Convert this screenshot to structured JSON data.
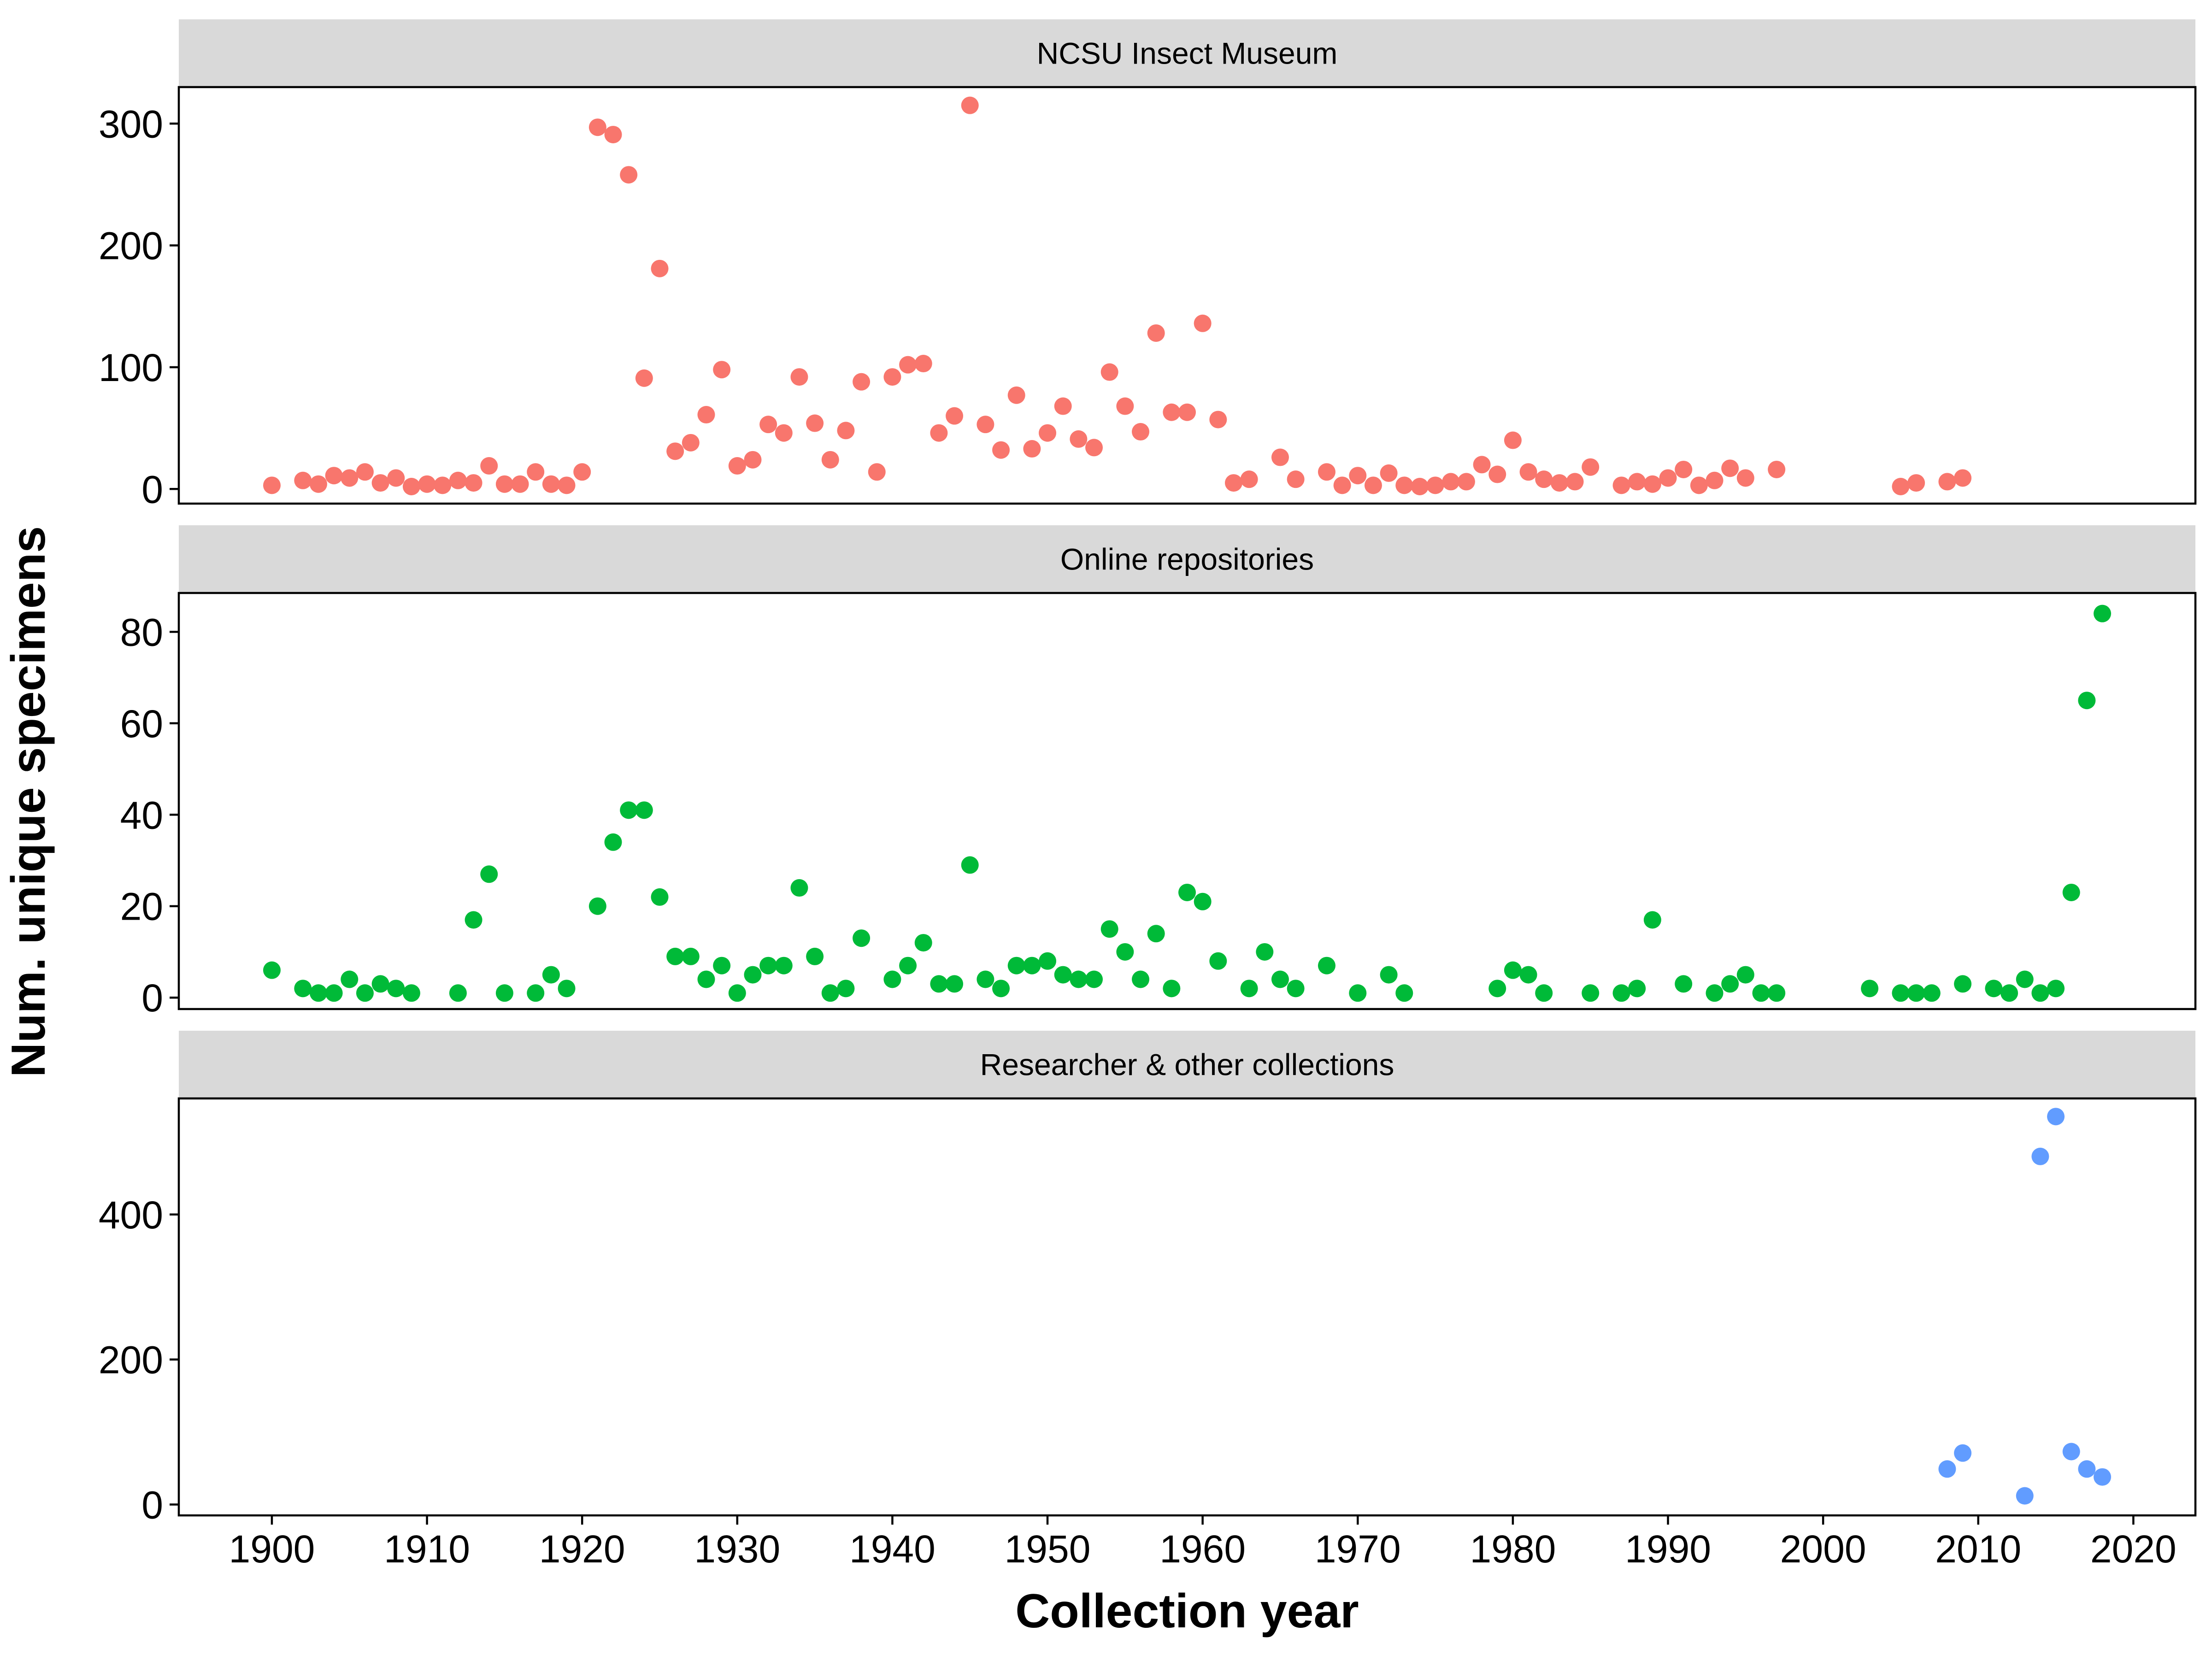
{
  "chart_data": {
    "type": "scatter",
    "xlabel": "Collection year",
    "ylabel": "Num. unique specimens",
    "xlim": [
      1894,
      2024
    ],
    "xticks": [
      1900,
      1910,
      1920,
      1930,
      1940,
      1950,
      1960,
      1970,
      1980,
      1990,
      2000,
      2010,
      2020
    ],
    "legend": "none",
    "grid": false,
    "panels": [
      {
        "strip": "NCSU Insect Museum",
        "color": "#F8766D",
        "ylim": [
          -12,
          330
        ],
        "yticks": [
          0,
          100,
          200,
          300
        ],
        "points": [
          [
            1900,
            3
          ],
          [
            1902,
            7
          ],
          [
            1903,
            4
          ],
          [
            1904,
            11
          ],
          [
            1905,
            9
          ],
          [
            1906,
            14
          ],
          [
            1907,
            5
          ],
          [
            1908,
            9
          ],
          [
            1909,
            2
          ],
          [
            1910,
            4
          ],
          [
            1911,
            3
          ],
          [
            1912,
            7
          ],
          [
            1913,
            5
          ],
          [
            1914,
            19
          ],
          [
            1915,
            4
          ],
          [
            1916,
            4
          ],
          [
            1917,
            14
          ],
          [
            1918,
            4
          ],
          [
            1919,
            3
          ],
          [
            1920,
            14
          ],
          [
            1921,
            297
          ],
          [
            1922,
            291
          ],
          [
            1923,
            258
          ],
          [
            1924,
            91
          ],
          [
            1925,
            181
          ],
          [
            1926,
            31
          ],
          [
            1927,
            38
          ],
          [
            1928,
            61
          ],
          [
            1929,
            98
          ],
          [
            1930,
            19
          ],
          [
            1931,
            24
          ],
          [
            1932,
            53
          ],
          [
            1933,
            46
          ],
          [
            1934,
            92
          ],
          [
            1935,
            54
          ],
          [
            1936,
            24
          ],
          [
            1937,
            48
          ],
          [
            1938,
            88
          ],
          [
            1939,
            14
          ],
          [
            1940,
            92
          ],
          [
            1941,
            102
          ],
          [
            1942,
            103
          ],
          [
            1943,
            46
          ],
          [
            1944,
            60
          ],
          [
            1945,
            315
          ],
          [
            1946,
            53
          ],
          [
            1947,
            32
          ],
          [
            1948,
            77
          ],
          [
            1949,
            33
          ],
          [
            1950,
            46
          ],
          [
            1951,
            68
          ],
          [
            1952,
            41
          ],
          [
            1953,
            34
          ],
          [
            1954,
            96
          ],
          [
            1955,
            68
          ],
          [
            1956,
            47
          ],
          [
            1957,
            128
          ],
          [
            1958,
            63
          ],
          [
            1959,
            63
          ],
          [
            1960,
            136
          ],
          [
            1961,
            57
          ],
          [
            1962,
            5
          ],
          [
            1963,
            8
          ],
          [
            1965,
            26
          ],
          [
            1966,
            8
          ],
          [
            1968,
            14
          ],
          [
            1969,
            3
          ],
          [
            1970,
            11
          ],
          [
            1971,
            3
          ],
          [
            1972,
            13
          ],
          [
            1973,
            3
          ],
          [
            1974,
            2
          ],
          [
            1975,
            3
          ],
          [
            1976,
            6
          ],
          [
            1977,
            6
          ],
          [
            1978,
            20
          ],
          [
            1979,
            12
          ],
          [
            1980,
            40
          ],
          [
            1981,
            14
          ],
          [
            1982,
            8
          ],
          [
            1983,
            5
          ],
          [
            1984,
            6
          ],
          [
            1985,
            18
          ],
          [
            1987,
            3
          ],
          [
            1988,
            6
          ],
          [
            1989,
            4
          ],
          [
            1990,
            9
          ],
          [
            1991,
            16
          ],
          [
            1992,
            3
          ],
          [
            1993,
            7
          ],
          [
            1994,
            17
          ],
          [
            1995,
            9
          ],
          [
            1997,
            16
          ],
          [
            2005,
            2
          ],
          [
            2006,
            5
          ],
          [
            2008,
            6
          ],
          [
            2009,
            9
          ]
        ]
      },
      {
        "strip": "Online repositories",
        "color": "#00BA38",
        "ylim": [
          -2.5,
          88.5
        ],
        "yticks": [
          0,
          20,
          40,
          60,
          80
        ],
        "points": [
          [
            1900,
            6
          ],
          [
            1902,
            2
          ],
          [
            1903,
            1
          ],
          [
            1904,
            1
          ],
          [
            1905,
            4
          ],
          [
            1906,
            1
          ],
          [
            1907,
            3
          ],
          [
            1908,
            2
          ],
          [
            1909,
            1
          ],
          [
            1912,
            1
          ],
          [
            1913,
            17
          ],
          [
            1914,
            27
          ],
          [
            1915,
            1
          ],
          [
            1917,
            1
          ],
          [
            1918,
            5
          ],
          [
            1919,
            2
          ],
          [
            1921,
            20
          ],
          [
            1922,
            34
          ],
          [
            1923,
            41
          ],
          [
            1924,
            41
          ],
          [
            1925,
            22
          ],
          [
            1926,
            9
          ],
          [
            1927,
            9
          ],
          [
            1928,
            4
          ],
          [
            1929,
            7
          ],
          [
            1930,
            1
          ],
          [
            1931,
            5
          ],
          [
            1932,
            7
          ],
          [
            1933,
            7
          ],
          [
            1934,
            24
          ],
          [
            1935,
            9
          ],
          [
            1936,
            1
          ],
          [
            1937,
            2
          ],
          [
            1938,
            13
          ],
          [
            1940,
            4
          ],
          [
            1941,
            7
          ],
          [
            1942,
            12
          ],
          [
            1943,
            3
          ],
          [
            1944,
            3
          ],
          [
            1945,
            29
          ],
          [
            1946,
            4
          ],
          [
            1947,
            2
          ],
          [
            1948,
            7
          ],
          [
            1949,
            7
          ],
          [
            1950,
            8
          ],
          [
            1951,
            5
          ],
          [
            1952,
            4
          ],
          [
            1953,
            4
          ],
          [
            1954,
            15
          ],
          [
            1955,
            10
          ],
          [
            1956,
            4
          ],
          [
            1957,
            14
          ],
          [
            1958,
            2
          ],
          [
            1959,
            23
          ],
          [
            1960,
            21
          ],
          [
            1961,
            8
          ],
          [
            1963,
            2
          ],
          [
            1964,
            10
          ],
          [
            1965,
            4
          ],
          [
            1966,
            2
          ],
          [
            1968,
            7
          ],
          [
            1970,
            1
          ],
          [
            1972,
            5
          ],
          [
            1973,
            1
          ],
          [
            1979,
            2
          ],
          [
            1980,
            6
          ],
          [
            1981,
            5
          ],
          [
            1982,
            1
          ],
          [
            1985,
            1
          ],
          [
            1987,
            1
          ],
          [
            1988,
            2
          ],
          [
            1989,
            17
          ],
          [
            1991,
            3
          ],
          [
            1993,
            1
          ],
          [
            1994,
            3
          ],
          [
            1995,
            5
          ],
          [
            1996,
            1
          ],
          [
            1997,
            1
          ],
          [
            2003,
            2
          ],
          [
            2005,
            1
          ],
          [
            2006,
            1
          ],
          [
            2007,
            1
          ],
          [
            2009,
            3
          ],
          [
            2011,
            2
          ],
          [
            2012,
            1
          ],
          [
            2013,
            4
          ],
          [
            2014,
            1
          ],
          [
            2015,
            2
          ],
          [
            2016,
            23
          ],
          [
            2017,
            65
          ],
          [
            2018,
            84
          ]
        ]
      },
      {
        "strip": "Researcher & other collections",
        "color": "#619CFF",
        "ylim": [
          -15,
          560
        ],
        "yticks": [
          0,
          200,
          400
        ],
        "points": [
          [
            2008,
            49
          ],
          [
            2009,
            71
          ],
          [
            2013,
            12
          ],
          [
            2014,
            480
          ],
          [
            2015,
            535
          ],
          [
            2016,
            73
          ],
          [
            2017,
            49
          ],
          [
            2018,
            38
          ]
        ]
      }
    ]
  }
}
